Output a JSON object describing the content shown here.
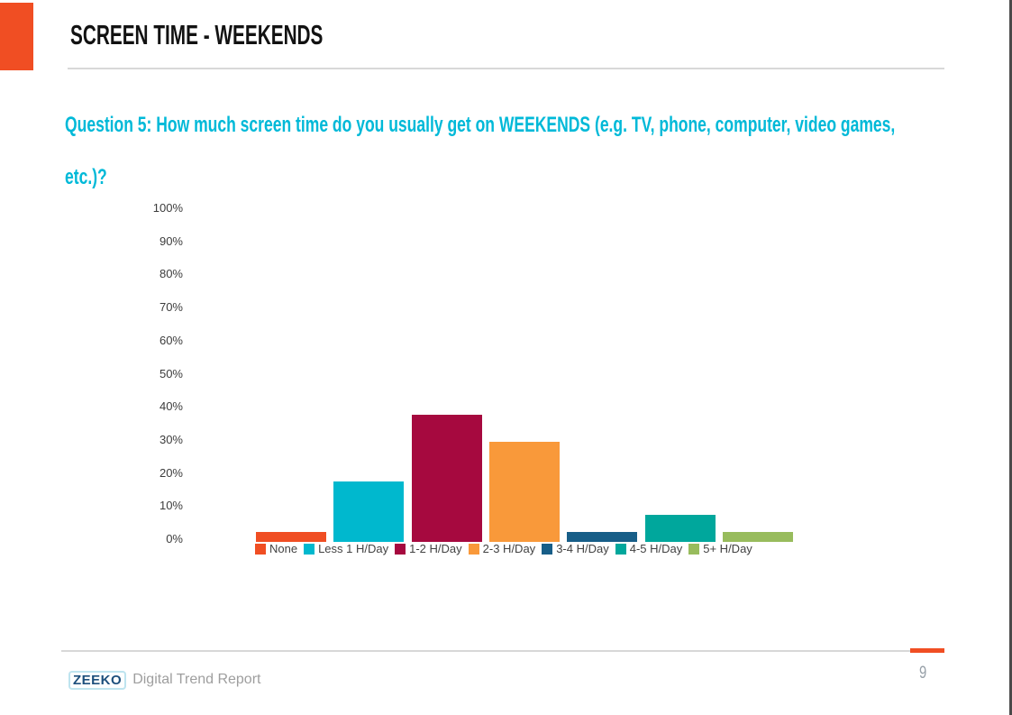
{
  "slide": {
    "title": "SCREEN TIME - WEEKENDS",
    "question": {
      "full_text": "Question 5: How much screen time do you usually get on WEEKENDS (e.g. TV, phone, computer, video games, etc.)?",
      "lines": [
        "Question 5: How much screen time do you usually get on WEEKENDS (e.g. TV, phone, computer, video games,",
        "etc.)?"
      ]
    },
    "page_number": "9",
    "footer": {
      "logo_text": "ZEEKO",
      "report_name": "Digital Trend Report"
    }
  },
  "colors": {
    "accent_orange": "#F04E23",
    "question_cyan": "#00B9D8",
    "logo_navy": "#1D4F7C",
    "divider_gray": "#D8D8D8"
  },
  "chart_data": {
    "type": "bar",
    "title": "",
    "xlabel": "",
    "ylabel": "",
    "categories": [
      "None",
      "Less 1 H/Day",
      "1-2 H/Day",
      "2-3 H/Day",
      "3-4 H/Day",
      "4-5 H/Day",
      "5+ H/Day"
    ],
    "values": [
      3,
      18,
      38,
      30,
      3,
      8,
      3
    ],
    "value_unit": "percent",
    "bar_colors": [
      "#F04E23",
      "#00B8CE",
      "#A6093F",
      "#F9993A",
      "#175E88",
      "#00A79C",
      "#98BC5D"
    ],
    "ylim": [
      0,
      100
    ],
    "y_tick_step": 10,
    "y_tick_labels": [
      "0%",
      "10%",
      "20%",
      "30%",
      "40%",
      "50%",
      "60%",
      "70%",
      "80%",
      "90%",
      "100%"
    ],
    "grid": false,
    "legend_position": "bottom"
  }
}
